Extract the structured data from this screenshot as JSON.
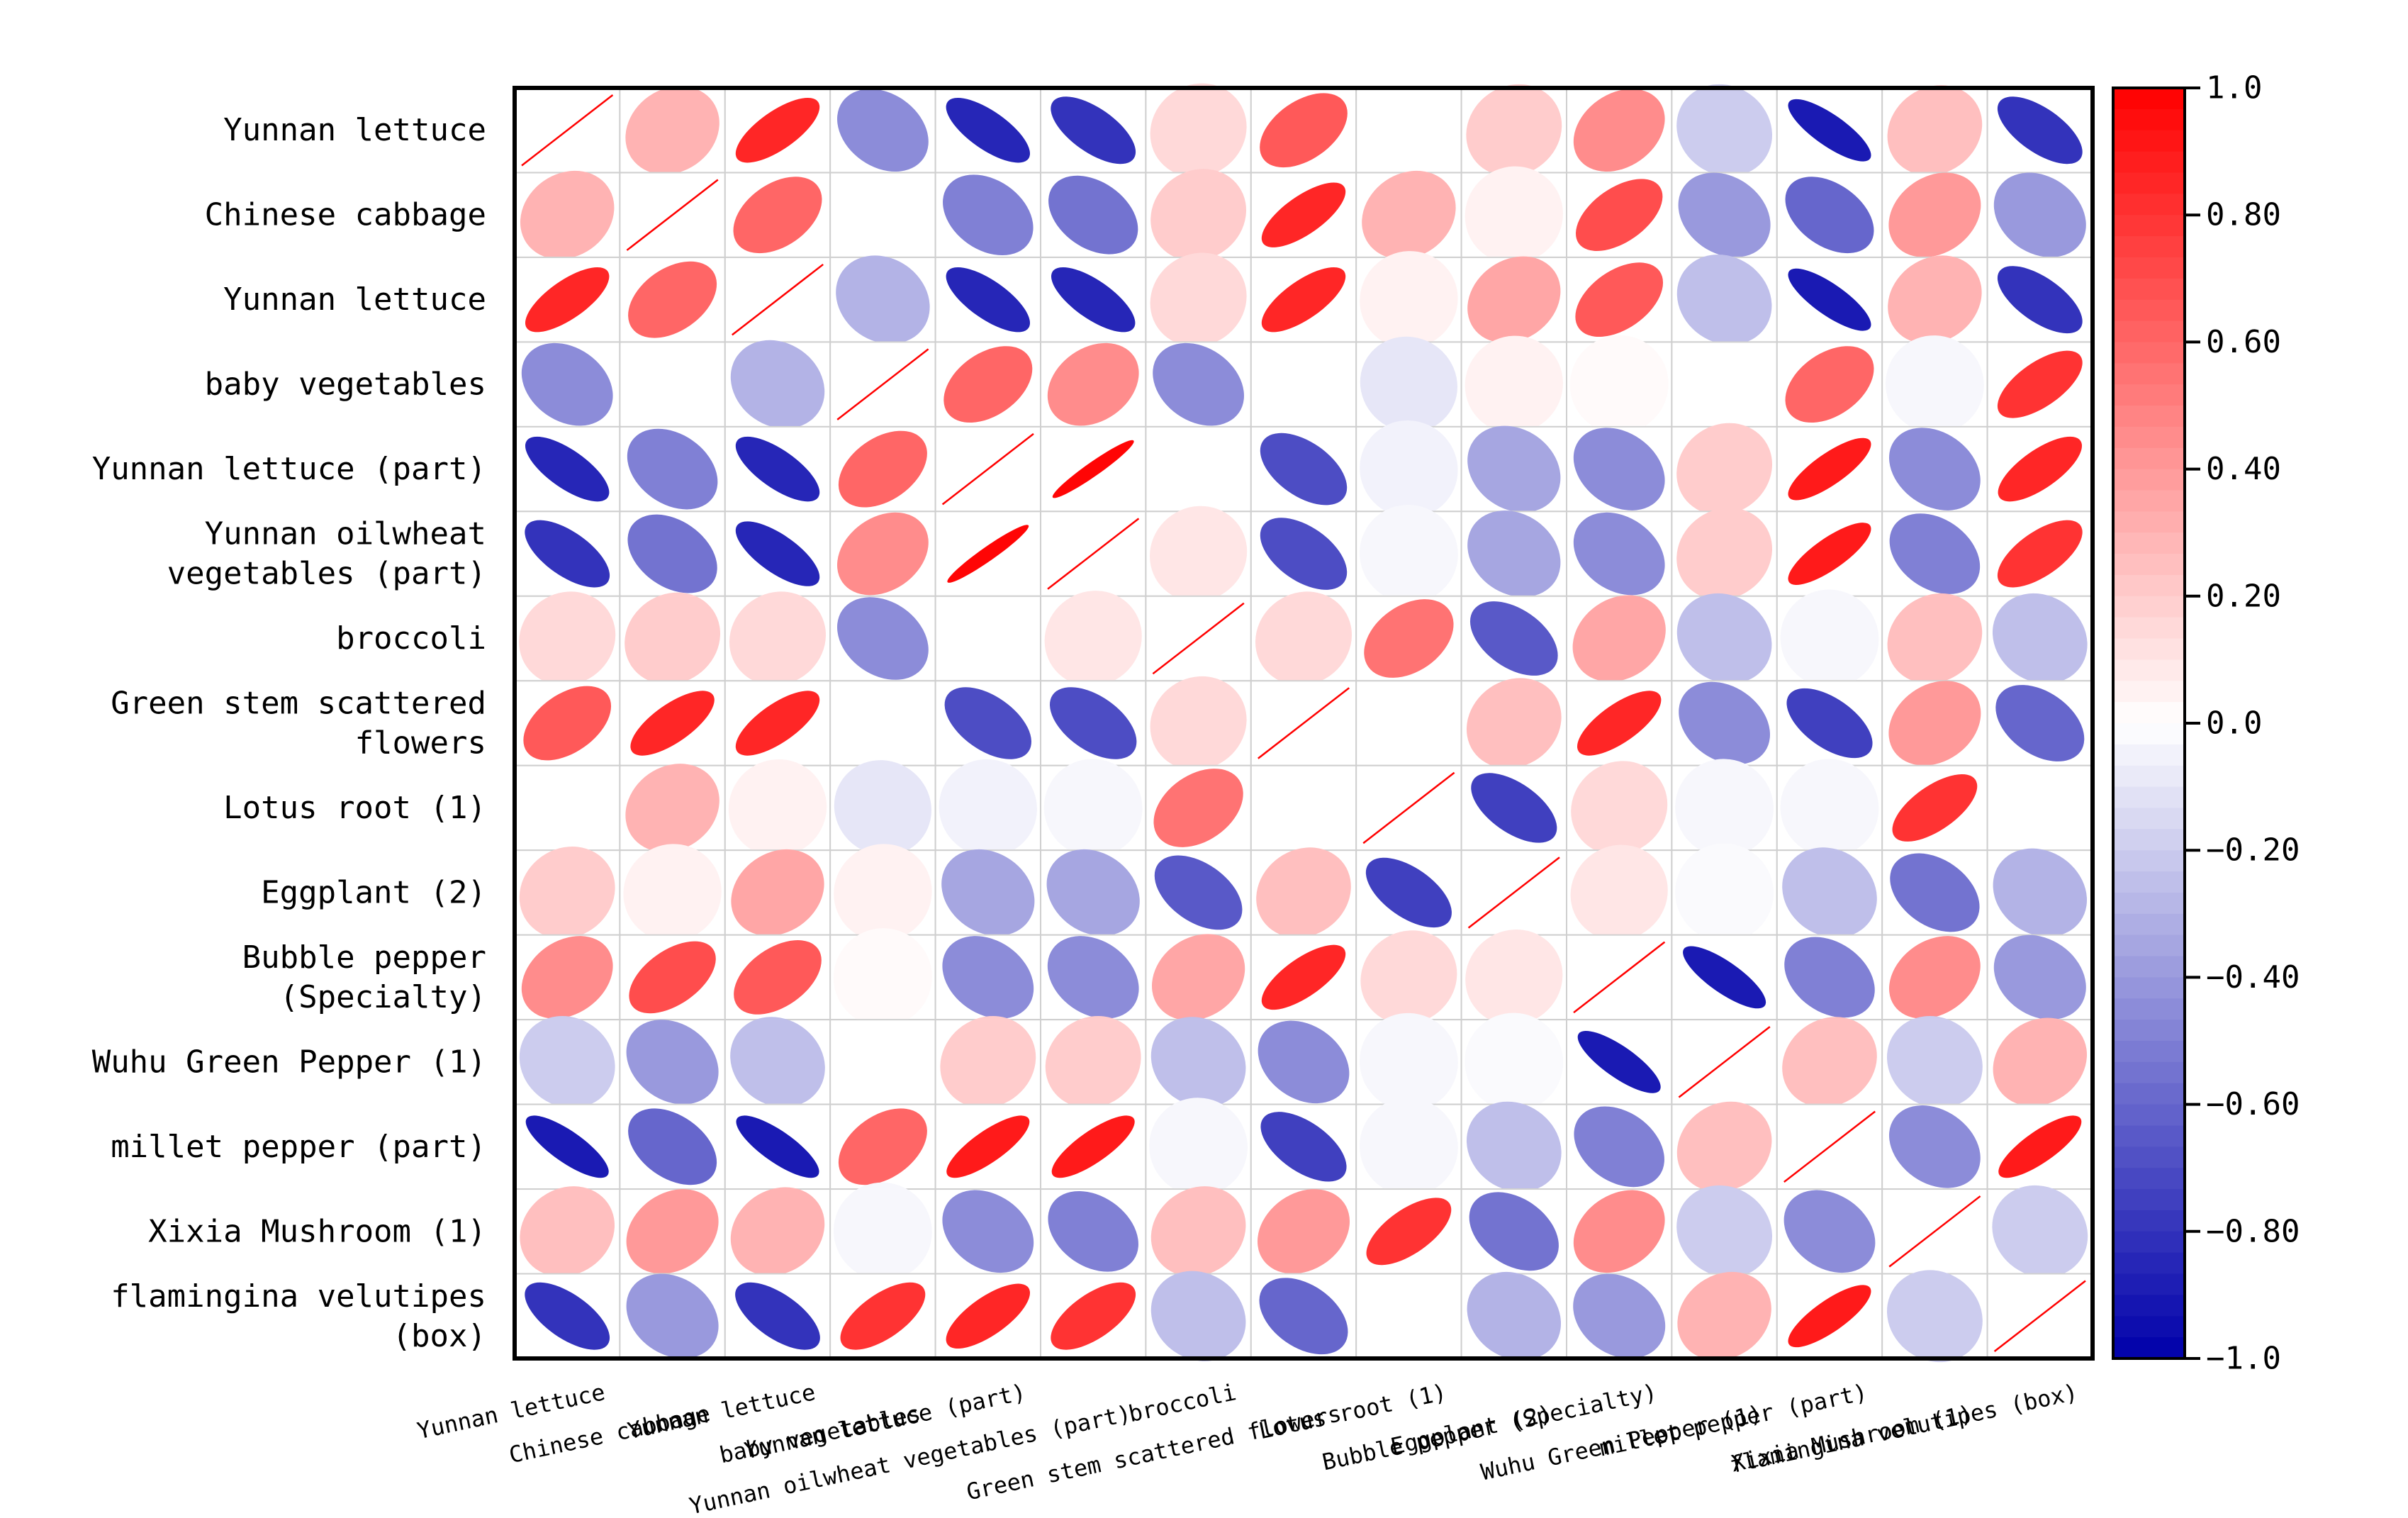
{
  "chart_data": {
    "type": "heatmap",
    "variables": [
      "Yunnan lettuce",
      "Chinese cabbage",
      "Yunnan lettuce",
      "baby vegetables",
      "Yunnan lettuce (part)",
      "Yunnan oilwheat vegetables (part)",
      "broccoli",
      "Green stem scattered flowers",
      "Lotus root (1)",
      "Eggplant (2)",
      "Bubble pepper (Specialty)",
      "Wuhu Green Pepper (1)",
      "millet pepper (part)",
      "Xixia Mushroom (1)",
      "flamingina velutipes (box)"
    ],
    "row_labels": [
      [
        "Yunnan lettuce"
      ],
      [
        "Chinese cabbage"
      ],
      [
        "Yunnan lettuce"
      ],
      [
        "baby vegetables"
      ],
      [
        "Yunnan lettuce (part)"
      ],
      [
        "Yunnan oilwheat",
        "vegetables (part)"
      ],
      [
        "broccoli"
      ],
      [
        "Green stem scattered",
        "flowers"
      ],
      [
        "Lotus root (1)"
      ],
      [
        "Eggplant (2)"
      ],
      [
        "Bubble pepper",
        "(Specialty)"
      ],
      [
        "Wuhu Green Pepper (1)"
      ],
      [
        "millet pepper (part)"
      ],
      [
        "Xixia Mushroom (1)"
      ],
      [
        "flamingina velutipes",
        "(box)"
      ]
    ],
    "matrix": [
      [
        1,
        0.3,
        0.85,
        -0.45,
        -0.85,
        -0.8,
        0.15,
        0.65,
        0,
        0.2,
        0.45,
        -0.2,
        -0.9,
        0.25,
        -0.8
      ],
      [
        0.3,
        1,
        0.6,
        0,
        -0.5,
        -0.55,
        0.2,
        0.85,
        0.3,
        0.05,
        0.7,
        -0.4,
        -0.6,
        0.4,
        -0.4
      ],
      [
        0.85,
        0.6,
        1,
        -0.3,
        -0.85,
        -0.85,
        0.15,
        0.85,
        0.05,
        0.35,
        0.65,
        -0.25,
        -0.9,
        0.3,
        -0.8
      ],
      [
        -0.45,
        0,
        -0.3,
        1,
        0.6,
        0.45,
        -0.45,
        0,
        -0.1,
        0.05,
        0.02,
        0,
        0.6,
        -0.03,
        0.8
      ],
      [
        -0.85,
        -0.5,
        -0.85,
        0.6,
        1,
        0.98,
        0,
        -0.7,
        -0.05,
        -0.35,
        -0.45,
        0.2,
        0.9,
        -0.45,
        0.85
      ],
      [
        -0.8,
        -0.55,
        -0.85,
        0.45,
        0.98,
        1,
        0.1,
        -0.7,
        -0.03,
        -0.35,
        -0.45,
        0.2,
        0.9,
        -0.5,
        0.8
      ],
      [
        0.15,
        0.2,
        0.15,
        -0.45,
        0,
        0.1,
        1,
        0.15,
        0.55,
        -0.65,
        0.35,
        -0.25,
        -0.03,
        0.25,
        -0.25
      ],
      [
        0.65,
        0.85,
        0.85,
        0,
        -0.7,
        -0.7,
        0.15,
        1,
        0,
        0.25,
        0.85,
        -0.45,
        -0.75,
        0.4,
        -0.6
      ],
      [
        0,
        0.3,
        0.05,
        -0.1,
        -0.05,
        -0.03,
        0.55,
        0,
        1,
        -0.75,
        0.15,
        -0.03,
        -0.03,
        0.8,
        0
      ],
      [
        0.2,
        0.05,
        0.35,
        0.05,
        -0.35,
        -0.35,
        -0.65,
        0.25,
        -0.75,
        1,
        0.1,
        -0.02,
        -0.25,
        -0.55,
        -0.3
      ],
      [
        0.45,
        0.7,
        0.65,
        0.02,
        -0.45,
        -0.45,
        0.35,
        0.85,
        0.15,
        0.1,
        1,
        -0.9,
        -0.5,
        0.45,
        -0.4
      ],
      [
        -0.2,
        -0.4,
        -0.25,
        0,
        0.2,
        0.2,
        -0.25,
        -0.45,
        -0.03,
        -0.02,
        -0.9,
        1,
        0.25,
        -0.2,
        0.3
      ],
      [
        -0.9,
        -0.6,
        -0.9,
        0.6,
        0.9,
        0.9,
        -0.03,
        -0.75,
        -0.03,
        -0.25,
        -0.5,
        0.25,
        1,
        -0.45,
        0.9
      ],
      [
        0.25,
        0.4,
        0.3,
        -0.03,
        -0.45,
        -0.5,
        0.25,
        0.4,
        0.8,
        -0.55,
        0.45,
        -0.2,
        -0.45,
        1,
        -0.2
      ],
      [
        -0.8,
        -0.4,
        -0.8,
        0.8,
        0.85,
        0.8,
        -0.25,
        -0.6,
        0,
        -0.3,
        -0.4,
        0.3,
        0.9,
        -0.2,
        1
      ]
    ],
    "colorbar": {
      "range": [
        -1,
        1
      ],
      "ticks": [
        "1.0",
        "0.80",
        "0.60",
        "0.40",
        "0.20",
        "0.0",
        "−0.20",
        "−0.40",
        "−0.60",
        "−0.80",
        "−1.0"
      ],
      "colors": {
        "negative": "#0000aa",
        "zero": "#ffffff",
        "positive": "#ff0000"
      }
    },
    "grid": true,
    "legend": "right"
  }
}
